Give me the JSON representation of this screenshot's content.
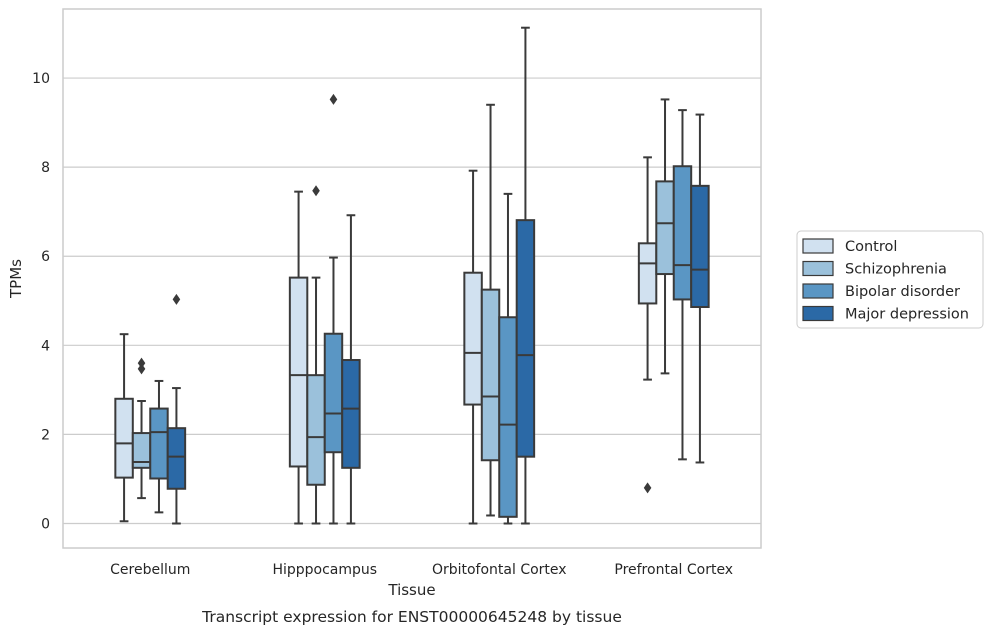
{
  "caption": "Transcript expression for ENST00000645248 by tissue",
  "chart_data": {
    "type": "box",
    "xlabel": "Tissue",
    "ylabel": "TPMs",
    "ylim": [
      -0.55,
      11.55
    ],
    "yticks": [
      0,
      2,
      4,
      6,
      8,
      10
    ],
    "grid": "horizontal",
    "legend_position": "right",
    "categories": [
      "Cerebellum",
      "Hipppocampus",
      "Orbitofontal Cortex",
      "Prefrontal Cortex"
    ],
    "series": [
      {
        "name": "Control",
        "color": "#d1e1f0",
        "boxes": [
          {
            "min": 0.05,
            "q1": 1.03,
            "median": 1.8,
            "q3": 2.8,
            "max": 4.25,
            "outliers": []
          },
          {
            "min": 0.0,
            "q1": 1.28,
            "median": 3.33,
            "q3": 5.52,
            "max": 7.45,
            "outliers": []
          },
          {
            "min": 0.0,
            "q1": 2.67,
            "median": 3.83,
            "q3": 5.63,
            "max": 7.92,
            "outliers": []
          },
          {
            "min": 3.23,
            "q1": 4.94,
            "median": 5.84,
            "q3": 6.29,
            "max": 8.22,
            "outliers": [
              0.8
            ]
          }
        ]
      },
      {
        "name": "Schizophrenia",
        "color": "#9bc1db",
        "boxes": [
          {
            "min": 0.57,
            "q1": 1.25,
            "median": 1.38,
            "q3": 2.03,
            "max": 2.75,
            "outliers": [
              3.47,
              3.6
            ]
          },
          {
            "min": 0.0,
            "q1": 0.87,
            "median": 1.94,
            "q3": 3.33,
            "max": 5.52,
            "outliers": [
              7.47
            ]
          },
          {
            "min": 0.18,
            "q1": 1.42,
            "median": 2.85,
            "q3": 5.25,
            "max": 9.4,
            "outliers": []
          },
          {
            "min": 3.37,
            "q1": 5.6,
            "median": 6.74,
            "q3": 7.68,
            "max": 9.52,
            "outliers": []
          }
        ]
      },
      {
        "name": "Bipolar disorder",
        "color": "#5a96c4",
        "boxes": [
          {
            "min": 0.25,
            "q1": 1.01,
            "median": 2.05,
            "q3": 2.58,
            "max": 3.2,
            "outliers": []
          },
          {
            "min": 0.0,
            "q1": 1.6,
            "median": 2.47,
            "q3": 4.26,
            "max": 5.97,
            "outliers": [
              9.52
            ]
          },
          {
            "min": 0.0,
            "q1": 0.15,
            "median": 2.22,
            "q3": 4.63,
            "max": 7.4,
            "outliers": []
          },
          {
            "min": 1.44,
            "q1": 5.03,
            "median": 5.8,
            "q3": 8.02,
            "max": 9.28,
            "outliers": []
          }
        ]
      },
      {
        "name": "Major depression",
        "color": "#2b69a6",
        "boxes": [
          {
            "min": 0.0,
            "q1": 0.78,
            "median": 1.5,
            "q3": 2.14,
            "max": 3.04,
            "outliers": [
              5.03
            ]
          },
          {
            "min": 0.0,
            "q1": 1.25,
            "median": 2.58,
            "q3": 3.67,
            "max": 6.92,
            "outliers": []
          },
          {
            "min": 0.0,
            "q1": 1.5,
            "median": 3.78,
            "q3": 6.81,
            "max": 11.13,
            "outliers": []
          },
          {
            "min": 1.37,
            "q1": 4.86,
            "median": 5.7,
            "q3": 7.58,
            "max": 9.18,
            "outliers": []
          }
        ]
      }
    ]
  }
}
